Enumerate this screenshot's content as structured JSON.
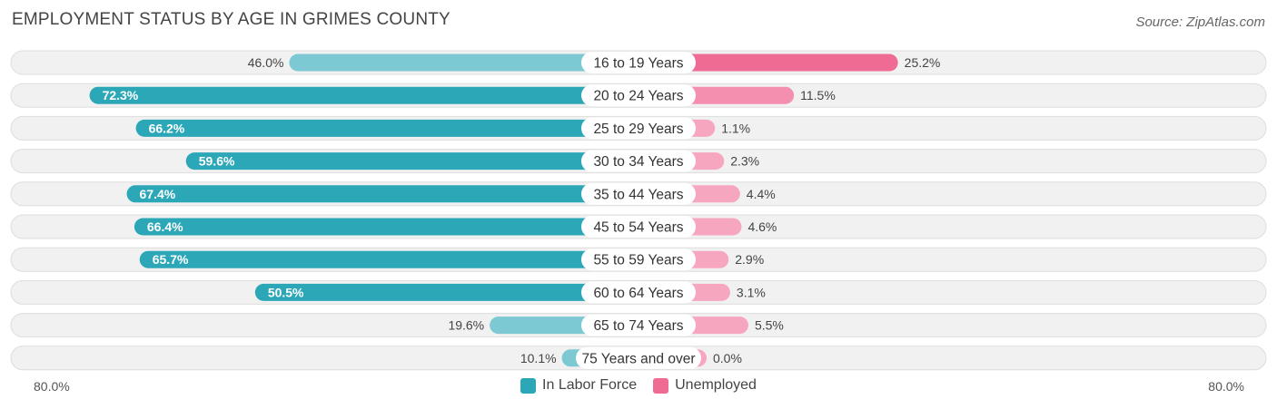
{
  "header": {
    "title": "EMPLOYMENT STATUS BY AGE IN GRIMES COUNTY",
    "source": "Source: ZipAtlas.com"
  },
  "colors": {
    "labor_strong": "#2ca7b8",
    "labor_light": "#7cc8d3",
    "unemployed_strong": "#f06b93",
    "unemployed_light": "#f7a6bf",
    "track": "#f1f1f1",
    "track_border": "#dddddd"
  },
  "chart_data": {
    "type": "bar",
    "orientation": "horizontal-diverging",
    "categories": [
      "16 to 19 Years",
      "20 to 24 Years",
      "25 to 29 Years",
      "30 to 34 Years",
      "35 to 44 Years",
      "45 to 54 Years",
      "55 to 59 Years",
      "60 to 64 Years",
      "65 to 74 Years",
      "75 Years and over"
    ],
    "series": [
      {
        "name": "In Labor Force",
        "values": [
          46.0,
          72.3,
          66.2,
          59.6,
          67.4,
          66.4,
          65.7,
          50.5,
          19.6,
          10.1
        ],
        "labels": [
          "46.0%",
          "72.3%",
          "66.2%",
          "59.6%",
          "67.4%",
          "66.4%",
          "65.7%",
          "50.5%",
          "19.6%",
          "10.1%"
        ]
      },
      {
        "name": "Unemployed",
        "values": [
          25.2,
          11.5,
          1.1,
          2.3,
          4.4,
          4.6,
          2.9,
          3.1,
          5.5,
          0.0
        ],
        "labels": [
          "25.2%",
          "11.5%",
          "1.1%",
          "2.3%",
          "4.4%",
          "4.6%",
          "2.9%",
          "3.1%",
          "5.5%",
          "0.0%"
        ]
      }
    ],
    "axis": {
      "left_label": "80.0%",
      "right_label": "80.0%",
      "range": [
        0,
        80
      ]
    },
    "legend": {
      "position": "bottom-center",
      "items": [
        "In Labor Force",
        "Unemployed"
      ]
    }
  }
}
